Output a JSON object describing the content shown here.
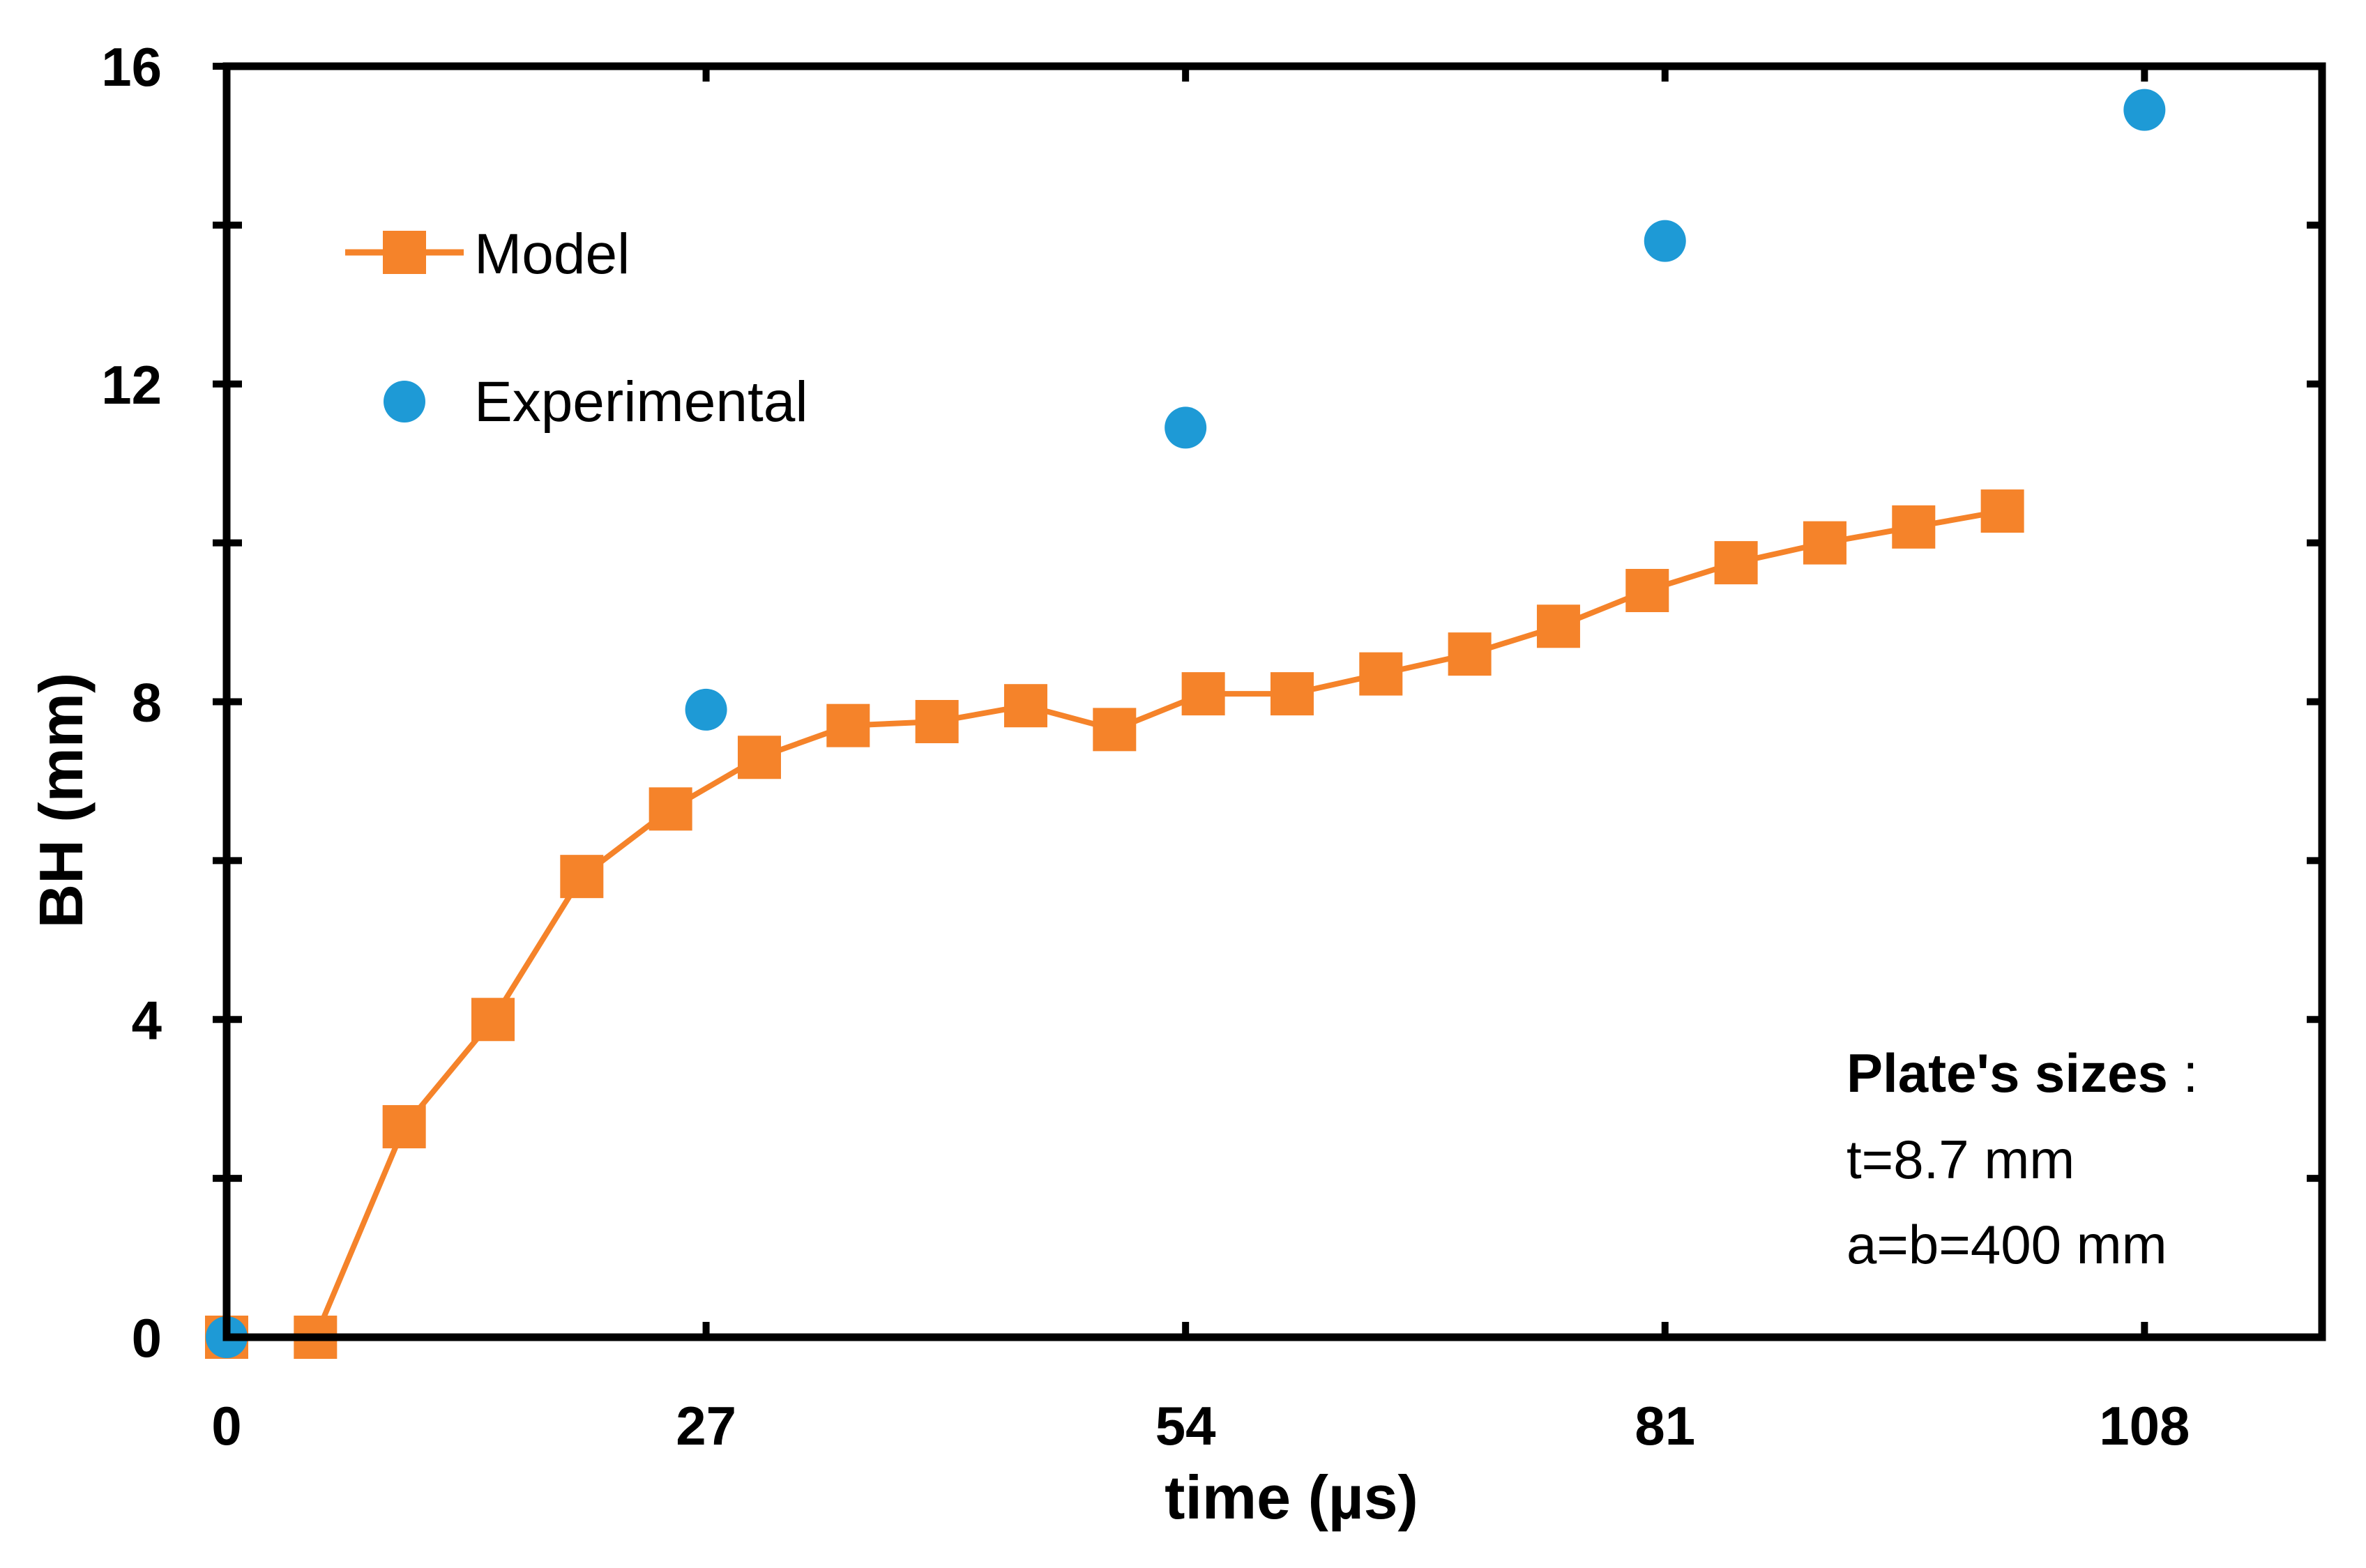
{
  "chart_data": {
    "type": "line",
    "xlabel": "time (µs)",
    "ylabel": "BH (mm)",
    "xlim": [
      0,
      118
    ],
    "ylim": [
      0,
      16
    ],
    "x_ticks": [
      0,
      27,
      54,
      81,
      108
    ],
    "x_tick_labels": [
      "0",
      "27",
      "54",
      "81",
      "108"
    ],
    "y_ticks": [
      0,
      4,
      8,
      12,
      16
    ],
    "y_tick_labels": [
      "0",
      "4",
      "8",
      "12",
      "16"
    ],
    "y_minor_ticks": [
      2,
      6,
      10,
      14
    ],
    "grid": false,
    "legend_position": "top-left",
    "series": [
      {
        "name": "Model",
        "style": "line-square",
        "color": "#f5832a",
        "x": [
          0,
          5,
          10,
          15,
          20,
          25,
          30,
          35,
          40,
          45,
          50,
          55,
          60,
          65,
          70,
          75,
          80,
          85,
          90,
          95,
          100
        ],
        "y": [
          0,
          0,
          2.65,
          4.0,
          5.8,
          6.65,
          7.3,
          7.7,
          7.75,
          7.95,
          7.65,
          8.1,
          8.1,
          8.35,
          8.6,
          8.95,
          9.4,
          9.75,
          10.0,
          10.2,
          10.4
        ]
      },
      {
        "name": "Experimental",
        "style": "scatter-circle",
        "color": "#1e9ad6",
        "x": [
          0,
          27,
          54,
          81,
          108
        ],
        "y": [
          0,
          7.9,
          11.45,
          13.8,
          15.45
        ]
      }
    ],
    "annotation": {
      "title": "Plate's sizes",
      "title_suffix": " :",
      "lines": [
        "t=8.7 mm",
        "a=b=400 mm"
      ]
    }
  }
}
